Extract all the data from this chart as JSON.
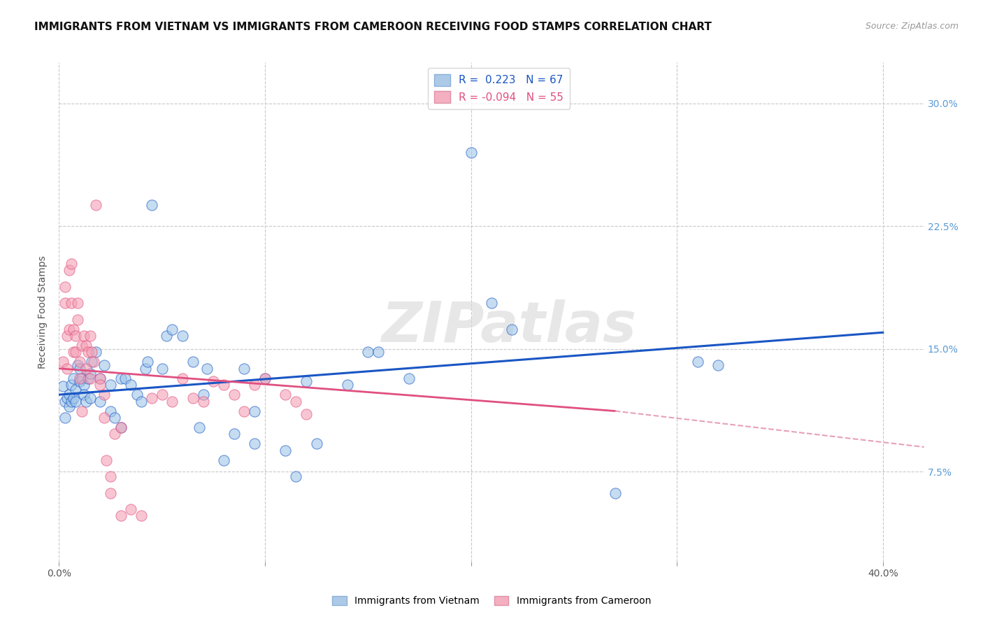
{
  "title": "IMMIGRANTS FROM VIETNAM VS IMMIGRANTS FROM CAMEROON RECEIVING FOOD STAMPS CORRELATION CHART",
  "source": "Source: ZipAtlas.com",
  "ylabel": "Receiving Food Stamps",
  "yticks": [
    "7.5%",
    "15.0%",
    "22.5%",
    "30.0%"
  ],
  "ytick_vals": [
    0.075,
    0.15,
    0.225,
    0.3
  ],
  "xlim": [
    0.0,
    0.42
  ],
  "ylim": [
    0.02,
    0.325
  ],
  "xtick_vals": [
    0.0,
    0.1,
    0.2,
    0.3,
    0.4
  ],
  "vietnam_scatter": [
    [
      0.002,
      0.127
    ],
    [
      0.003,
      0.108
    ],
    [
      0.003,
      0.118
    ],
    [
      0.004,
      0.12
    ],
    [
      0.005,
      0.122
    ],
    [
      0.005,
      0.115
    ],
    [
      0.006,
      0.128
    ],
    [
      0.006,
      0.118
    ],
    [
      0.007,
      0.132
    ],
    [
      0.007,
      0.12
    ],
    [
      0.008,
      0.118
    ],
    [
      0.008,
      0.125
    ],
    [
      0.009,
      0.14
    ],
    [
      0.01,
      0.138
    ],
    [
      0.01,
      0.13
    ],
    [
      0.011,
      0.132
    ],
    [
      0.012,
      0.128
    ],
    [
      0.012,
      0.122
    ],
    [
      0.013,
      0.118
    ],
    [
      0.014,
      0.132
    ],
    [
      0.015,
      0.135
    ],
    [
      0.015,
      0.12
    ],
    [
      0.016,
      0.142
    ],
    [
      0.018,
      0.148
    ],
    [
      0.02,
      0.132
    ],
    [
      0.02,
      0.118
    ],
    [
      0.022,
      0.14
    ],
    [
      0.025,
      0.128
    ],
    [
      0.025,
      0.112
    ],
    [
      0.027,
      0.108
    ],
    [
      0.03,
      0.102
    ],
    [
      0.03,
      0.132
    ],
    [
      0.032,
      0.132
    ],
    [
      0.035,
      0.128
    ],
    [
      0.038,
      0.122
    ],
    [
      0.04,
      0.118
    ],
    [
      0.042,
      0.138
    ],
    [
      0.043,
      0.142
    ],
    [
      0.045,
      0.238
    ],
    [
      0.05,
      0.138
    ],
    [
      0.052,
      0.158
    ],
    [
      0.055,
      0.162
    ],
    [
      0.06,
      0.158
    ],
    [
      0.065,
      0.142
    ],
    [
      0.068,
      0.102
    ],
    [
      0.07,
      0.122
    ],
    [
      0.072,
      0.138
    ],
    [
      0.08,
      0.082
    ],
    [
      0.085,
      0.098
    ],
    [
      0.09,
      0.138
    ],
    [
      0.095,
      0.112
    ],
    [
      0.095,
      0.092
    ],
    [
      0.1,
      0.132
    ],
    [
      0.11,
      0.088
    ],
    [
      0.115,
      0.072
    ],
    [
      0.12,
      0.13
    ],
    [
      0.125,
      0.092
    ],
    [
      0.14,
      0.128
    ],
    [
      0.15,
      0.148
    ],
    [
      0.155,
      0.148
    ],
    [
      0.17,
      0.132
    ],
    [
      0.2,
      0.27
    ],
    [
      0.21,
      0.178
    ],
    [
      0.22,
      0.162
    ],
    [
      0.27,
      0.062
    ],
    [
      0.31,
      0.142
    ],
    [
      0.32,
      0.14
    ]
  ],
  "cameroon_scatter": [
    [
      0.002,
      0.142
    ],
    [
      0.003,
      0.178
    ],
    [
      0.003,
      0.188
    ],
    [
      0.004,
      0.138
    ],
    [
      0.004,
      0.158
    ],
    [
      0.005,
      0.198
    ],
    [
      0.005,
      0.162
    ],
    [
      0.006,
      0.202
    ],
    [
      0.006,
      0.178
    ],
    [
      0.007,
      0.148
    ],
    [
      0.007,
      0.162
    ],
    [
      0.008,
      0.158
    ],
    [
      0.008,
      0.148
    ],
    [
      0.009,
      0.178
    ],
    [
      0.009,
      0.168
    ],
    [
      0.01,
      0.142
    ],
    [
      0.01,
      0.132
    ],
    [
      0.011,
      0.152
    ],
    [
      0.011,
      0.112
    ],
    [
      0.012,
      0.158
    ],
    [
      0.013,
      0.152
    ],
    [
      0.013,
      0.138
    ],
    [
      0.014,
      0.148
    ],
    [
      0.015,
      0.158
    ],
    [
      0.015,
      0.132
    ],
    [
      0.016,
      0.148
    ],
    [
      0.017,
      0.142
    ],
    [
      0.018,
      0.238
    ],
    [
      0.02,
      0.132
    ],
    [
      0.02,
      0.128
    ],
    [
      0.022,
      0.122
    ],
    [
      0.022,
      0.108
    ],
    [
      0.023,
      0.082
    ],
    [
      0.025,
      0.072
    ],
    [
      0.025,
      0.062
    ],
    [
      0.027,
      0.098
    ],
    [
      0.03,
      0.048
    ],
    [
      0.03,
      0.102
    ],
    [
      0.035,
      0.052
    ],
    [
      0.04,
      0.048
    ],
    [
      0.045,
      0.12
    ],
    [
      0.05,
      0.122
    ],
    [
      0.055,
      0.118
    ],
    [
      0.06,
      0.132
    ],
    [
      0.065,
      0.12
    ],
    [
      0.07,
      0.118
    ],
    [
      0.075,
      0.13
    ],
    [
      0.08,
      0.128
    ],
    [
      0.085,
      0.122
    ],
    [
      0.09,
      0.112
    ],
    [
      0.095,
      0.128
    ],
    [
      0.1,
      0.132
    ],
    [
      0.11,
      0.122
    ],
    [
      0.115,
      0.118
    ],
    [
      0.12,
      0.11
    ]
  ],
  "vietnam_line_solid": {
    "x": [
      0.0,
      0.4
    ],
    "y": [
      0.122,
      0.16
    ]
  },
  "cameroon_line_solid": {
    "x": [
      0.0,
      0.27
    ],
    "y": [
      0.138,
      0.112
    ]
  },
  "cameroon_line_dashed": {
    "x": [
      0.27,
      0.42
    ],
    "y": [
      0.112,
      0.09
    ]
  },
  "vietnam_color": "#9fc5e8",
  "cameroon_color": "#f4a0b5",
  "vietnam_line_color": "#1a56c4",
  "cameroon_line_color": "#e05080",
  "cameroon_dash_color": "#e8a0b8",
  "background_color": "#ffffff",
  "grid_color": "#c8c8c8",
  "title_fontsize": 11,
  "source_fontsize": 9,
  "axis_label_fontsize": 10,
  "tick_fontsize": 10,
  "legend_fontsize": 11,
  "scatter_size": 120,
  "scatter_alpha": 0.6,
  "scatter_linewidth": 0.8
}
